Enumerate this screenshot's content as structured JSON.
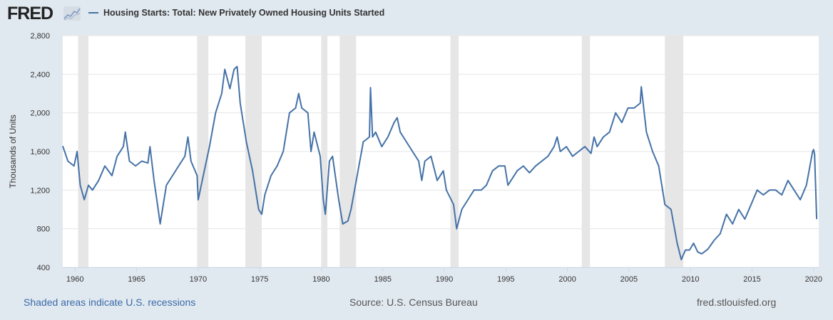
{
  "header": {
    "logo": "FRED",
    "legend": "Housing Starts: Total: New Privately Owned Housing Units Started"
  },
  "footer": {
    "recession_note": "Shaded areas indicate U.S. recessions",
    "source": "Source: U.S. Census Bureau",
    "site": "fred.stlouisfed.org"
  },
  "colors": {
    "background": "#e1e9f0",
    "series": "#4572a7",
    "recession": "#e6e6e6",
    "grid": "#e6e6e6"
  },
  "icons": {
    "logo_graph": "line-chart-icon"
  },
  "chart_data": {
    "type": "line",
    "title": "",
    "ylabel": "Thousands of Units",
    "xlabel": "",
    "ylim": [
      400,
      2800
    ],
    "xlim": [
      "1959-01",
      "2020-06"
    ],
    "yticks": [
      400,
      800,
      1200,
      1600,
      2000,
      2400,
      2800
    ],
    "ytick_labels": [
      "400",
      "800",
      "1,200",
      "1,600",
      "2,000",
      "2,400",
      "2,800"
    ],
    "xticks": [
      "1960",
      "1965",
      "1970",
      "1975",
      "1980",
      "1985",
      "1990",
      "1995",
      "2000",
      "2005",
      "2010",
      "2015",
      "2020"
    ],
    "grid": true,
    "legend_placement": "top-left",
    "recessions": [
      [
        "1960-04",
        "1961-02"
      ],
      [
        "1969-12",
        "1970-11"
      ],
      [
        "1973-11",
        "1975-03"
      ],
      [
        "1980-01",
        "1980-07"
      ],
      [
        "1981-07",
        "1982-11"
      ],
      [
        "1990-07",
        "1991-03"
      ],
      [
        "2001-03",
        "2001-11"
      ],
      [
        "2007-12",
        "2009-06"
      ]
    ],
    "series": [
      {
        "name": "Housing Starts: Total: New Privately Owned Housing Units Started",
        "x": [
          "1959-01",
          "1959-06",
          "1959-12",
          "1960-03",
          "1960-06",
          "1960-10",
          "1961-02",
          "1961-06",
          "1961-12",
          "1962-06",
          "1963-01",
          "1963-06",
          "1963-12",
          "1964-02",
          "1964-06",
          "1964-12",
          "1965-06",
          "1965-12",
          "1966-02",
          "1966-06",
          "1966-10",
          "1966-12",
          "1967-03",
          "1967-06",
          "1967-12",
          "1968-06",
          "1968-12",
          "1969-03",
          "1969-06",
          "1969-12",
          "1970-01",
          "1970-06",
          "1970-12",
          "1971-06",
          "1971-12",
          "1972-03",
          "1972-08",
          "1972-12",
          "1973-03",
          "1973-06",
          "1973-12",
          "1974-06",
          "1974-12",
          "1975-03",
          "1975-06",
          "1975-12",
          "1976-06",
          "1976-12",
          "1977-06",
          "1977-12",
          "1978-03",
          "1978-06",
          "1978-12",
          "1979-03",
          "1979-06",
          "1979-12",
          "1980-03",
          "1980-05",
          "1980-09",
          "1980-12",
          "1981-06",
          "1981-10",
          "1982-03",
          "1982-06",
          "1982-12",
          "1983-06",
          "1983-12",
          "1984-01",
          "1984-03",
          "1984-06",
          "1984-12",
          "1985-06",
          "1985-12",
          "1986-03",
          "1986-06",
          "1986-12",
          "1987-06",
          "1987-12",
          "1988-03",
          "1988-06",
          "1988-12",
          "1989-06",
          "1989-12",
          "1990-03",
          "1990-10",
          "1991-01",
          "1991-06",
          "1991-12",
          "1992-06",
          "1993-01",
          "1993-06",
          "1993-12",
          "1994-06",
          "1994-12",
          "1995-03",
          "1995-06",
          "1995-12",
          "1996-06",
          "1996-12",
          "1997-06",
          "1997-12",
          "1998-06",
          "1998-12",
          "1999-03",
          "1999-06",
          "1999-12",
          "2000-06",
          "2000-12",
          "2001-06",
          "2001-12",
          "2002-03",
          "2002-06",
          "2002-12",
          "2003-06",
          "2003-12",
          "2004-06",
          "2004-12",
          "2005-06",
          "2005-12",
          "2006-01",
          "2006-06",
          "2006-12",
          "2007-06",
          "2007-12",
          "2008-06",
          "2008-12",
          "2009-04",
          "2009-08",
          "2009-12",
          "2010-04",
          "2010-08",
          "2010-12",
          "2011-06",
          "2011-12",
          "2012-06",
          "2012-12",
          "2013-06",
          "2013-12",
          "2014-06",
          "2014-12",
          "2015-06",
          "2015-12",
          "2016-06",
          "2016-12",
          "2017-06",
          "2017-12",
          "2018-06",
          "2018-12",
          "2019-06",
          "2019-12",
          "2020-01",
          "2020-02",
          "2020-04"
        ],
        "values": [
          1657,
          1500,
          1450,
          1600,
          1250,
          1100,
          1250,
          1200,
          1300,
          1450,
          1350,
          1550,
          1650,
          1800,
          1500,
          1450,
          1500,
          1480,
          1650,
          1300,
          1000,
          850,
          1050,
          1250,
          1350,
          1450,
          1550,
          1750,
          1500,
          1350,
          1100,
          1350,
          1650,
          2000,
          2200,
          2450,
          2250,
          2450,
          2480,
          2100,
          1700,
          1400,
          1000,
          950,
          1150,
          1350,
          1450,
          1600,
          2000,
          2050,
          2200,
          2050,
          2000,
          1600,
          1800,
          1550,
          1100,
          950,
          1500,
          1550,
          1100,
          850,
          880,
          1000,
          1350,
          1700,
          1750,
          2260,
          1750,
          1800,
          1650,
          1750,
          1900,
          1950,
          1800,
          1700,
          1600,
          1500,
          1300,
          1500,
          1550,
          1300,
          1400,
          1200,
          1050,
          800,
          1000,
          1100,
          1200,
          1200,
          1250,
          1400,
          1450,
          1450,
          1250,
          1300,
          1400,
          1450,
          1380,
          1450,
          1500,
          1550,
          1650,
          1750,
          1600,
          1650,
          1550,
          1600,
          1650,
          1580,
          1750,
          1650,
          1750,
          1800,
          2000,
          1900,
          2050,
          2050,
          2100,
          2270,
          1800,
          1600,
          1450,
          1050,
          1000,
          650,
          480,
          580,
          580,
          650,
          560,
          540,
          590,
          680,
          750,
          950,
          850,
          1000,
          900,
          1050,
          1200,
          1150,
          1200,
          1200,
          1150,
          1300,
          1200,
          1100,
          1250,
          1600,
          1620,
          1570,
          900
        ]
      }
    ]
  }
}
